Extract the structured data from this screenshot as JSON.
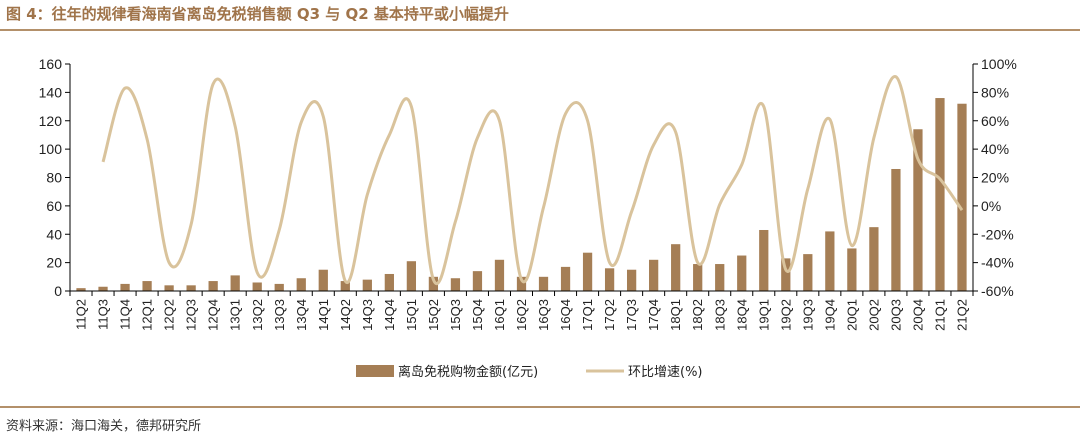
{
  "figure": {
    "title": "图 4：往年的规律看海南省离岛免税销售额 Q3 与 Q2 基本持平或小幅提升",
    "source": "资料来源：海口海关，德邦研究所"
  },
  "colors": {
    "bar": "#a57e55",
    "line": "#d9c39c",
    "rule": "#b3906a",
    "title": "#a0744a"
  },
  "chart_data": {
    "type": "bar",
    "categories": [
      "11Q2",
      "11Q3",
      "11Q4",
      "12Q1",
      "12Q2",
      "12Q3",
      "12Q4",
      "13Q1",
      "13Q2",
      "13Q3",
      "13Q4",
      "14Q1",
      "14Q2",
      "14Q3",
      "14Q4",
      "15Q1",
      "15Q2",
      "15Q3",
      "15Q4",
      "16Q1",
      "16Q2",
      "16Q3",
      "16Q4",
      "17Q1",
      "17Q2",
      "17Q3",
      "17Q4",
      "18Q1",
      "18Q2",
      "18Q3",
      "18Q4",
      "19Q1",
      "19Q2",
      "19Q3",
      "19Q4",
      "20Q1",
      "20Q2",
      "20Q3",
      "20Q4",
      "21Q1",
      "21Q2"
    ],
    "series": [
      {
        "name": "离岛免税购物金额(亿元)",
        "type": "bar",
        "axis": "left",
        "values": [
          2,
          3,
          5,
          7,
          4,
          4,
          7,
          11,
          6,
          5,
          9,
          15,
          7,
          8,
          12,
          21,
          10,
          9,
          14,
          22,
          10,
          10,
          17,
          27,
          16,
          15,
          22,
          33,
          19,
          19,
          25,
          43,
          23,
          26,
          42,
          30,
          45,
          86,
          114,
          136,
          132
        ]
      },
      {
        "name": "环比增速(%)",
        "type": "line",
        "axis": "right",
        "values": [
          null,
          31,
          83,
          47,
          -40,
          -13,
          86,
          56,
          -47,
          -17,
          59,
          63,
          -53,
          8,
          50,
          70,
          -52,
          -11,
          48,
          60,
          -52,
          -1,
          65,
          60,
          -40,
          -4,
          43,
          52,
          -40,
          1,
          29,
          70,
          -45,
          12,
          61,
          -28,
          48,
          91,
          33,
          19,
          -3
        ]
      }
    ],
    "ylim_left": [
      0,
      160
    ],
    "yticks_left": [
      0,
      20,
      40,
      60,
      80,
      100,
      120,
      140,
      160
    ],
    "ylim_right": [
      -60,
      100
    ],
    "yticks_right": [
      "-60%",
      "-40%",
      "-20%",
      "0%",
      "20%",
      "40%",
      "60%",
      "80%",
      "100%"
    ],
    "legend": "bottom-center",
    "grid": false
  }
}
